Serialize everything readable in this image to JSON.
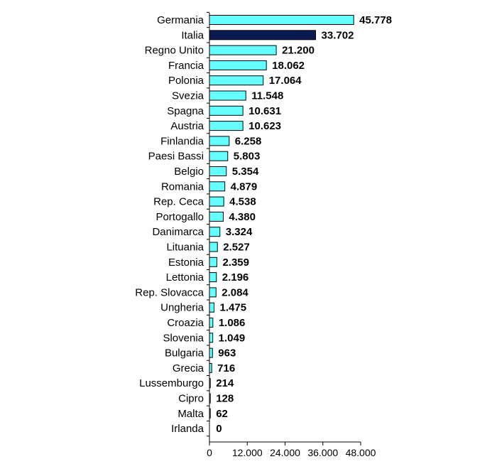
{
  "chart_data": {
    "type": "bar",
    "orientation": "horizontal",
    "title": "",
    "xlabel": "",
    "ylabel": "",
    "xlim": [
      0,
      48000
    ],
    "xticks": [
      0,
      12000,
      24000,
      36000,
      48000
    ],
    "xtick_labels": [
      "0",
      "12.000",
      "24.000",
      "36.000",
      "48.000"
    ],
    "grid": false,
    "colors": {
      "default": "#66FFFF",
      "highlight": "#0A1A50",
      "border": "#000000"
    },
    "highlight_category": "Italia",
    "categories": [
      "Germania",
      "Italia",
      "Regno Unito",
      "Francia",
      "Polonia",
      "Svezia",
      "Spagna",
      "Austria",
      "Finlandia",
      "Paesi Bassi",
      "Belgio",
      "Romania",
      "Rep. Ceca",
      "Portogallo",
      "Danimarca",
      "Lituania",
      "Estonia",
      "Lettonia",
      "Rep. Slovacca",
      "Ungheria",
      "Croazia",
      "Slovenia",
      "Bulgaria",
      "Grecia",
      "Lussemburgo",
      "Cipro",
      "Malta",
      "Irlanda"
    ],
    "values": [
      45778,
      33702,
      21200,
      18062,
      17064,
      11548,
      10631,
      10623,
      6258,
      5803,
      5354,
      4879,
      4538,
      4380,
      3324,
      2527,
      2359,
      2196,
      2084,
      1475,
      1086,
      1049,
      963,
      716,
      214,
      128,
      62,
      0
    ],
    "value_labels": [
      "45.778",
      "33.702",
      "21.200",
      "18.062",
      "17.064",
      "11.548",
      "10.631",
      "10.623",
      "6.258",
      "5.803",
      "5.354",
      "4.879",
      "4.538",
      "4.380",
      "3.324",
      "2.527",
      "2.359",
      "2.196",
      "2.084",
      "1.475",
      "1.086",
      "1.049",
      "963",
      "716",
      "214",
      "128",
      "62",
      "0"
    ]
  }
}
